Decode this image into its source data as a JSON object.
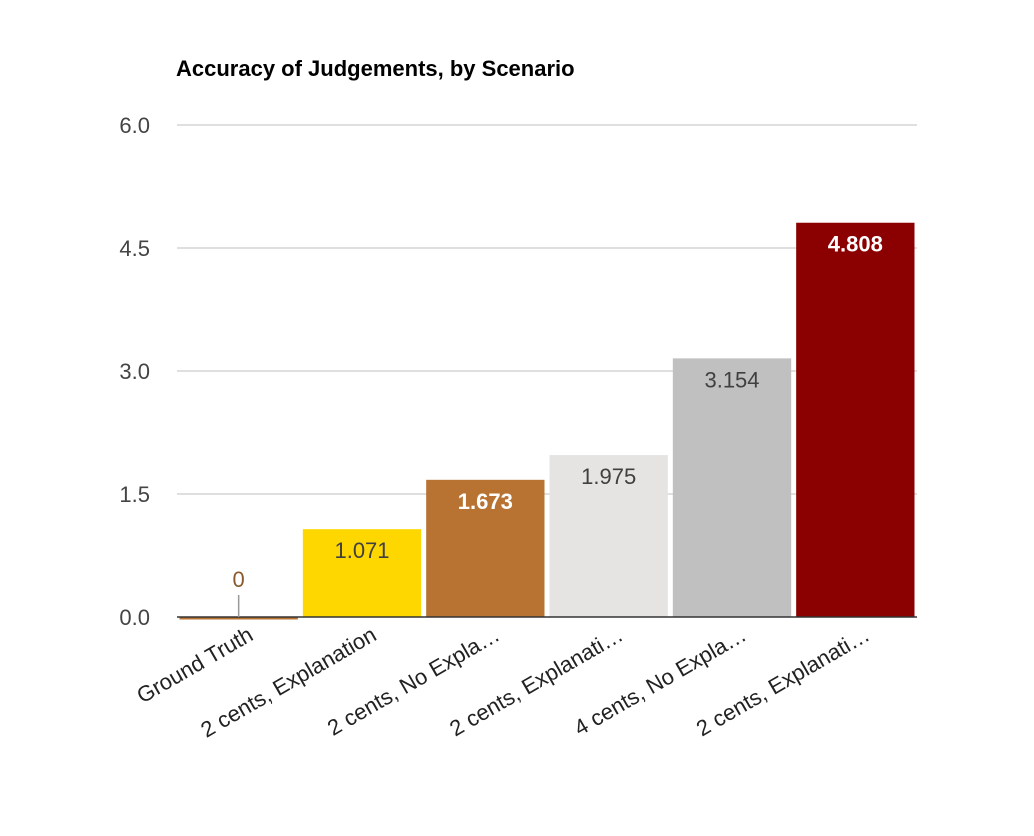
{
  "chart_data": {
    "type": "bar",
    "title": "Accuracy of Judgements, by Scenario",
    "xlabel": "",
    "ylabel": "",
    "categories": [
      "Ground Truth",
      "2 cents, Explanation",
      "2 cents, No Expla…",
      "2 cents, Explanati…",
      "4 cents, No Expla…",
      "2 cents, Explanati…"
    ],
    "values": [
      0,
      1.071,
      1.673,
      1.975,
      3.154,
      4.808
    ],
    "data_labels": [
      "0",
      "1.071",
      "1.673",
      "1.975",
      "3.154",
      "4.808"
    ],
    "bar_colors": [
      "#b87333",
      "#ffd700",
      "#b87333",
      "#e5e4e2",
      "#c0c0c0",
      "#8b0000"
    ],
    "label_colors": [
      "#8b5a2b",
      "#404040",
      "#ffffff",
      "#404040",
      "#404040",
      "#ffffff"
    ],
    "ylim": [
      0,
      6
    ],
    "yticks": [
      0,
      1.5,
      3,
      4.5,
      6
    ],
    "ytick_labels": [
      "0.0",
      "1.5",
      "3.0",
      "4.5",
      "6.0"
    ],
    "grid": true,
    "legend": "none"
  }
}
